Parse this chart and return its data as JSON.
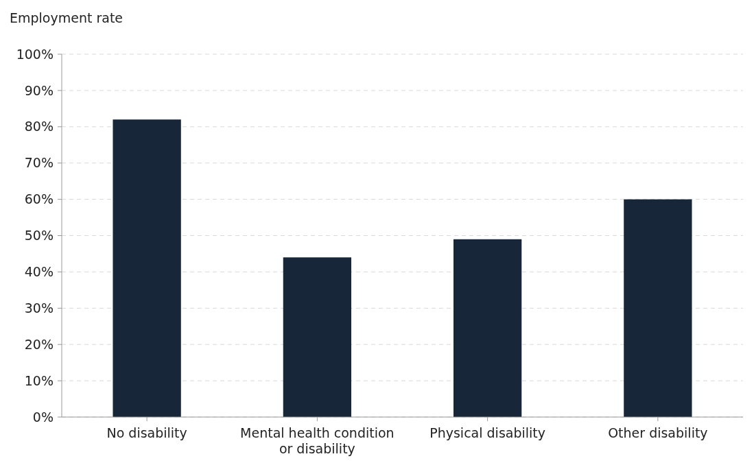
{
  "chart_data": {
    "type": "bar",
    "ylabel": "Employment rate",
    "categories": [
      "No disability",
      "Mental health condition or disability",
      "Physical disability",
      "Other disability"
    ],
    "values": [
      82,
      44,
      49,
      60
    ],
    "color": "#172639",
    "ylim": [
      0,
      100
    ],
    "yticks": [
      {
        "value": 0,
        "label": "0%"
      },
      {
        "value": 10,
        "label": "10%"
      },
      {
        "value": 20,
        "label": "20%"
      },
      {
        "value": 30,
        "label": "30%"
      },
      {
        "value": 40,
        "label": "40%"
      },
      {
        "value": 50,
        "label": "50%"
      },
      {
        "value": 60,
        "label": "60%"
      },
      {
        "value": 70,
        "label": "70%"
      },
      {
        "value": 80,
        "label": "80%"
      },
      {
        "value": 90,
        "label": "90%"
      },
      {
        "value": 100,
        "label": "100%"
      }
    ],
    "grid": "y"
  }
}
